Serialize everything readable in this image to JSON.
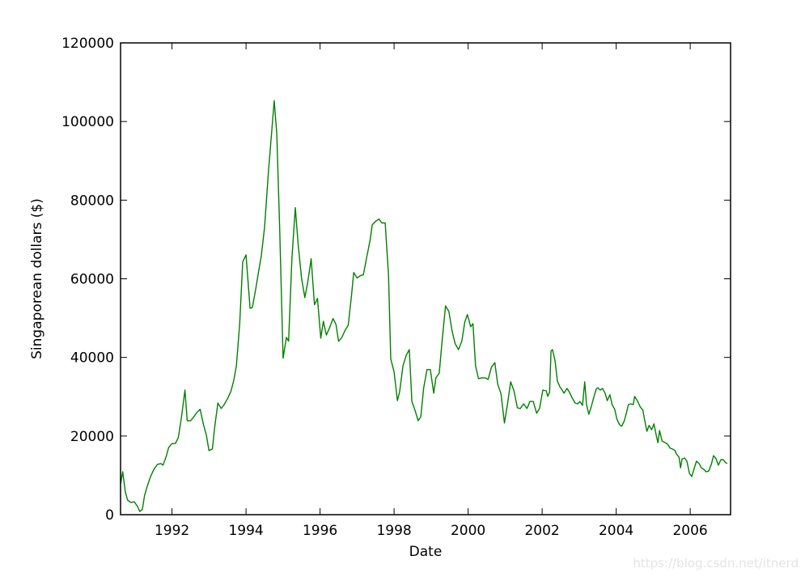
{
  "chart_data": {
    "type": "line",
    "title": "",
    "xlabel": "Date",
    "ylabel": "Singaporean dollars ($)",
    "xlim": [
      1990.61,
      2007.09
    ],
    "ylim": [
      0,
      120000
    ],
    "x_ticks": [
      1992,
      1994,
      1996,
      1998,
      2000,
      2002,
      2004,
      2006
    ],
    "x_tick_labels": [
      "1992",
      "1994",
      "1996",
      "1998",
      "2000",
      "2002",
      "2004",
      "2006"
    ],
    "y_ticks": [
      0,
      20000,
      40000,
      60000,
      80000,
      100000,
      120000
    ],
    "y_tick_labels": [
      "0",
      "20000",
      "40000",
      "60000",
      "80000",
      "100000",
      "120000"
    ],
    "grid": false,
    "line_color": "#008000",
    "series": [
      {
        "x": [
          1990.61,
          1990.67,
          1990.74,
          1990.8,
          1990.89,
          1990.98,
          1991.07,
          1991.13,
          1991.2,
          1991.26,
          1991.35,
          1991.43,
          1991.52,
          1991.61,
          1991.7,
          1991.76,
          1991.85,
          1991.91,
          1992.0,
          1992.09,
          1992.17,
          1992.26,
          1992.35,
          1992.41,
          1992.5,
          1992.59,
          1992.67,
          1992.76,
          1992.85,
          1992.93,
          1993.0,
          1993.09,
          1993.15,
          1993.24,
          1993.33,
          1993.41,
          1993.5,
          1993.59,
          1993.67,
          1993.74,
          1993.83,
          1993.91,
          1994.0,
          1994.11,
          1994.17,
          1994.26,
          1994.35,
          1994.41,
          1994.5,
          1994.61,
          1994.7,
          1994.76,
          1994.83,
          1994.91,
          1995.0,
          1995.09,
          1995.15,
          1995.24,
          1995.33,
          1995.41,
          1995.5,
          1995.59,
          1995.67,
          1995.76,
          1995.85,
          1995.93,
          1996.02,
          1996.09,
          1996.17,
          1996.26,
          1996.35,
          1996.43,
          1996.5,
          1996.59,
          1996.67,
          1996.76,
          1996.85,
          1996.91,
          1997.0,
          1997.09,
          1997.17,
          1997.26,
          1997.35,
          1997.41,
          1997.5,
          1997.59,
          1997.67,
          1997.76,
          1997.85,
          1997.91,
          1998.0,
          1998.09,
          1998.15,
          1998.24,
          1998.33,
          1998.41,
          1998.48,
          1998.57,
          1998.65,
          1998.72,
          1998.8,
          1998.89,
          1998.98,
          1999.07,
          1999.13,
          1999.22,
          1999.3,
          1999.39,
          1999.48,
          1999.57,
          1999.65,
          1999.74,
          1999.83,
          1999.91,
          1999.98,
          2000.07,
          2000.13,
          2000.2,
          2000.28,
          2000.37,
          2000.46,
          2000.54,
          2000.63,
          2000.72,
          2000.8,
          2000.89,
          2000.98,
          2001.07,
          2001.15,
          2001.24,
          2001.33,
          2001.41,
          2001.5,
          2001.59,
          2001.67,
          2001.76,
          2001.85,
          2001.93,
          2002.02,
          2002.11,
          2002.15,
          2002.2,
          2002.24,
          2002.28,
          2002.35,
          2002.41,
          2002.48,
          2002.54,
          2002.59,
          2002.67,
          2002.74,
          2002.8,
          2002.89,
          2002.96,
          2003.02,
          2003.09,
          2003.15,
          2003.2,
          2003.26,
          2003.33,
          2003.39,
          2003.46,
          2003.5,
          2003.57,
          2003.63,
          2003.7,
          2003.76,
          2003.83,
          2003.89,
          2003.96,
          2004.02,
          2004.09,
          2004.15,
          2004.22,
          2004.28,
          2004.33,
          2004.39,
          2004.46,
          2004.5,
          2004.57,
          2004.65,
          2004.72,
          2004.76,
          2004.83,
          2004.89,
          2004.96,
          2005.02,
          2005.09,
          2005.13,
          2005.17,
          2005.24,
          2005.33,
          2005.39,
          2005.46,
          2005.52,
          2005.59,
          2005.63,
          2005.7,
          2005.74,
          2005.78,
          2005.85,
          2005.91,
          2005.98,
          2006.04,
          2006.11,
          2006.17,
          2006.24,
          2006.3,
          2006.37,
          2006.43,
          2006.5,
          2006.57,
          2006.63,
          2006.7,
          2006.76,
          2006.83,
          2006.89,
          2006.96,
          2007.0
        ],
        "y": [
          7800,
          10900,
          5800,
          3700,
          3100,
          3300,
          2100,
          800,
          1400,
          4900,
          7800,
          9900,
          11700,
          12800,
          13000,
          12600,
          15000,
          17100,
          18100,
          18100,
          19600,
          25100,
          31700,
          23900,
          23900,
          24900,
          26000,
          26800,
          22900,
          20200,
          16300,
          16700,
          22000,
          28400,
          27000,
          28000,
          29500,
          31300,
          34200,
          37900,
          48600,
          64300,
          66100,
          52500,
          52700,
          57300,
          62400,
          65700,
          73100,
          87800,
          98100,
          105300,
          97000,
          72700,
          39800,
          45100,
          44100,
          65100,
          78100,
          68600,
          60200,
          55200,
          59300,
          65100,
          53400,
          55000,
          44900,
          49200,
          45700,
          47600,
          49900,
          48400,
          44100,
          45100,
          46800,
          48200,
          55800,
          61600,
          60200,
          60800,
          61000,
          65500,
          69800,
          73700,
          74600,
          75200,
          74200,
          74200,
          61000,
          39600,
          36300,
          29000,
          31300,
          37900,
          40600,
          42000,
          28800,
          26400,
          23900,
          24900,
          32300,
          36900,
          36900,
          30900,
          34800,
          36000,
          44500,
          53100,
          51700,
          46600,
          43500,
          42000,
          44100,
          49000,
          50900,
          47800,
          48600,
          37900,
          34600,
          34800,
          34800,
          34400,
          37500,
          38700,
          33200,
          30700,
          23300,
          28600,
          33800,
          31500,
          27200,
          27000,
          28200,
          27000,
          28800,
          28800,
          25800,
          27000,
          31700,
          31500,
          30100,
          31100,
          41600,
          42000,
          39100,
          34000,
          32500,
          31700,
          30900,
          32100,
          31100,
          29900,
          28400,
          28200,
          28800,
          27800,
          33800,
          28000,
          25500,
          27600,
          29700,
          31900,
          32300,
          31700,
          32100,
          30900,
          29000,
          30500,
          28000,
          26800,
          24300,
          22900,
          22500,
          23900,
          26000,
          28000,
          28200,
          28000,
          30100,
          29000,
          27400,
          26600,
          24500,
          21200,
          22700,
          21600,
          23100,
          19800,
          18300,
          21400,
          18700,
          18300,
          17900,
          16900,
          16700,
          16300,
          15400,
          14600,
          11900,
          14200,
          14400,
          13600,
          10500,
          9700,
          11900,
          13600,
          13000,
          11900,
          11500,
          10900,
          11100,
          12800,
          15000,
          14200,
          12600,
          14000,
          14000,
          13200,
          13000
        ]
      }
    ]
  },
  "watermark": "https://blog.csdn.net/itnerd"
}
